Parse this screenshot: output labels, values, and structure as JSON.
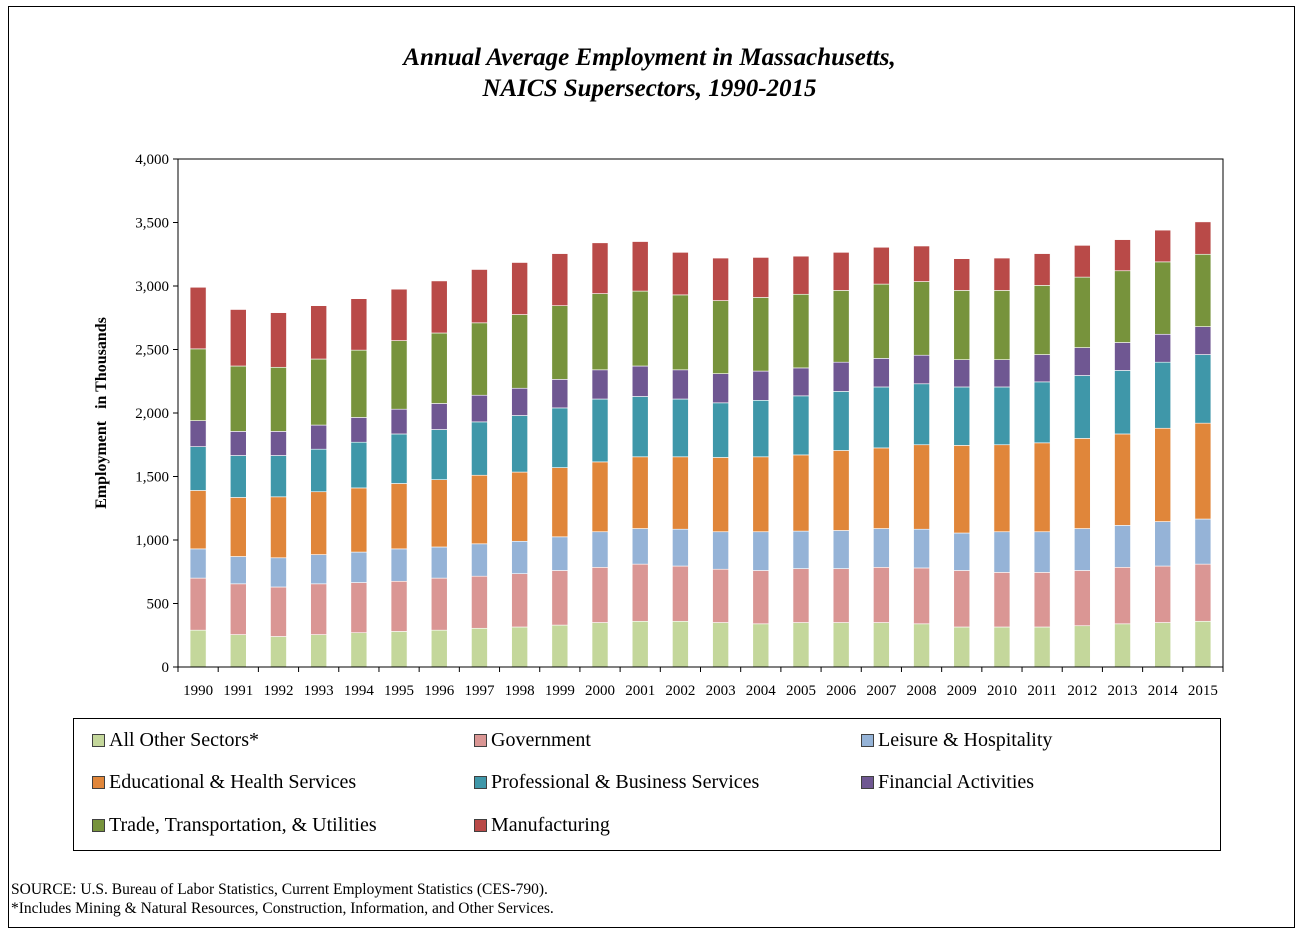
{
  "chart_data": {
    "type": "bar",
    "stacked": true,
    "title": "Annual Average Employment in Massachusetts,",
    "subtitle": "NAICS Supersectors, 1990-2015",
    "ylabel": "Employment   in Thousands",
    "xlabel": "",
    "ylim": [
      0,
      4000
    ],
    "yticks": [
      "0",
      "500",
      "1,000",
      "1,500",
      "2,000",
      "2,500",
      "3,000",
      "3,500",
      "4,000"
    ],
    "grid": false,
    "legend_position": "bottom",
    "categories": [
      "1990",
      "1991",
      "1992",
      "1993",
      "1994",
      "1995",
      "1996",
      "1997",
      "1998",
      "1999",
      "2000",
      "2001",
      "2002",
      "2003",
      "2004",
      "2005",
      "2006",
      "2007",
      "2008",
      "2009",
      "2010",
      "2011",
      "2012",
      "2013",
      "2014",
      "2015"
    ],
    "series": [
      {
        "name": "All Other Sectors*",
        "color": "#c4d79b",
        "values": [
          290,
          255,
          240,
          255,
          270,
          280,
          290,
          305,
          315,
          330,
          350,
          360,
          360,
          350,
          340,
          350,
          350,
          350,
          340,
          315,
          315,
          315,
          325,
          340,
          350,
          360
        ]
      },
      {
        "name": "Government",
        "color": "#da9694",
        "values": [
          410,
          400,
          390,
          400,
          395,
          395,
          410,
          410,
          420,
          430,
          435,
          450,
          435,
          420,
          420,
          425,
          425,
          435,
          440,
          445,
          430,
          430,
          435,
          445,
          445,
          450
        ]
      },
      {
        "name": "Leisure & Hospitality",
        "color": "#95b3d7",
        "values": [
          230,
          215,
          230,
          230,
          240,
          255,
          245,
          255,
          255,
          265,
          280,
          280,
          290,
          295,
          305,
          295,
          300,
          305,
          305,
          295,
          320,
          320,
          330,
          330,
          350,
          355
        ]
      },
      {
        "name": "Educational & Health Services",
        "color": "#e0863a",
        "values": [
          460,
          465,
          480,
          495,
          505,
          515,
          530,
          540,
          545,
          545,
          550,
          565,
          570,
          585,
          590,
          600,
          630,
          635,
          665,
          690,
          685,
          700,
          710,
          720,
          735,
          755
        ]
      },
      {
        "name": "Professional & Business Services",
        "color": "#3f97a9",
        "values": [
          345,
          330,
          325,
          335,
          360,
          390,
          395,
          420,
          445,
          470,
          495,
          475,
          455,
          430,
          445,
          465,
          465,
          480,
          480,
          460,
          455,
          480,
          495,
          500,
          520,
          540
        ]
      },
      {
        "name": "Financial Activities",
        "color": "#6f5792",
        "values": [
          205,
          190,
          190,
          190,
          195,
          195,
          205,
          210,
          215,
          225,
          230,
          240,
          230,
          230,
          230,
          220,
          230,
          225,
          225,
          215,
          215,
          215,
          220,
          220,
          220,
          220
        ]
      },
      {
        "name": "Trade, Transportation, & Utilities",
        "color": "#77933c",
        "values": [
          565,
          515,
          505,
          520,
          530,
          540,
          555,
          570,
          580,
          580,
          600,
          590,
          590,
          575,
          580,
          580,
          565,
          585,
          580,
          545,
          545,
          545,
          555,
          565,
          570,
          570
        ]
      },
      {
        "name": "Manufacturing",
        "color": "#b94a48",
        "values": [
          485,
          445,
          430,
          420,
          405,
          405,
          410,
          420,
          410,
          410,
          400,
          390,
          335,
          335,
          315,
          300,
          300,
          290,
          280,
          250,
          255,
          250,
          250,
          245,
          250,
          255
        ]
      }
    ]
  },
  "source": {
    "line1": "SOURCE: U.S. Bureau of Labor Statistics, Current Employment Statistics (CES-790).",
    "line2": "*Includes Mining & Natural Resources, Construction, Information, and Other Services."
  }
}
